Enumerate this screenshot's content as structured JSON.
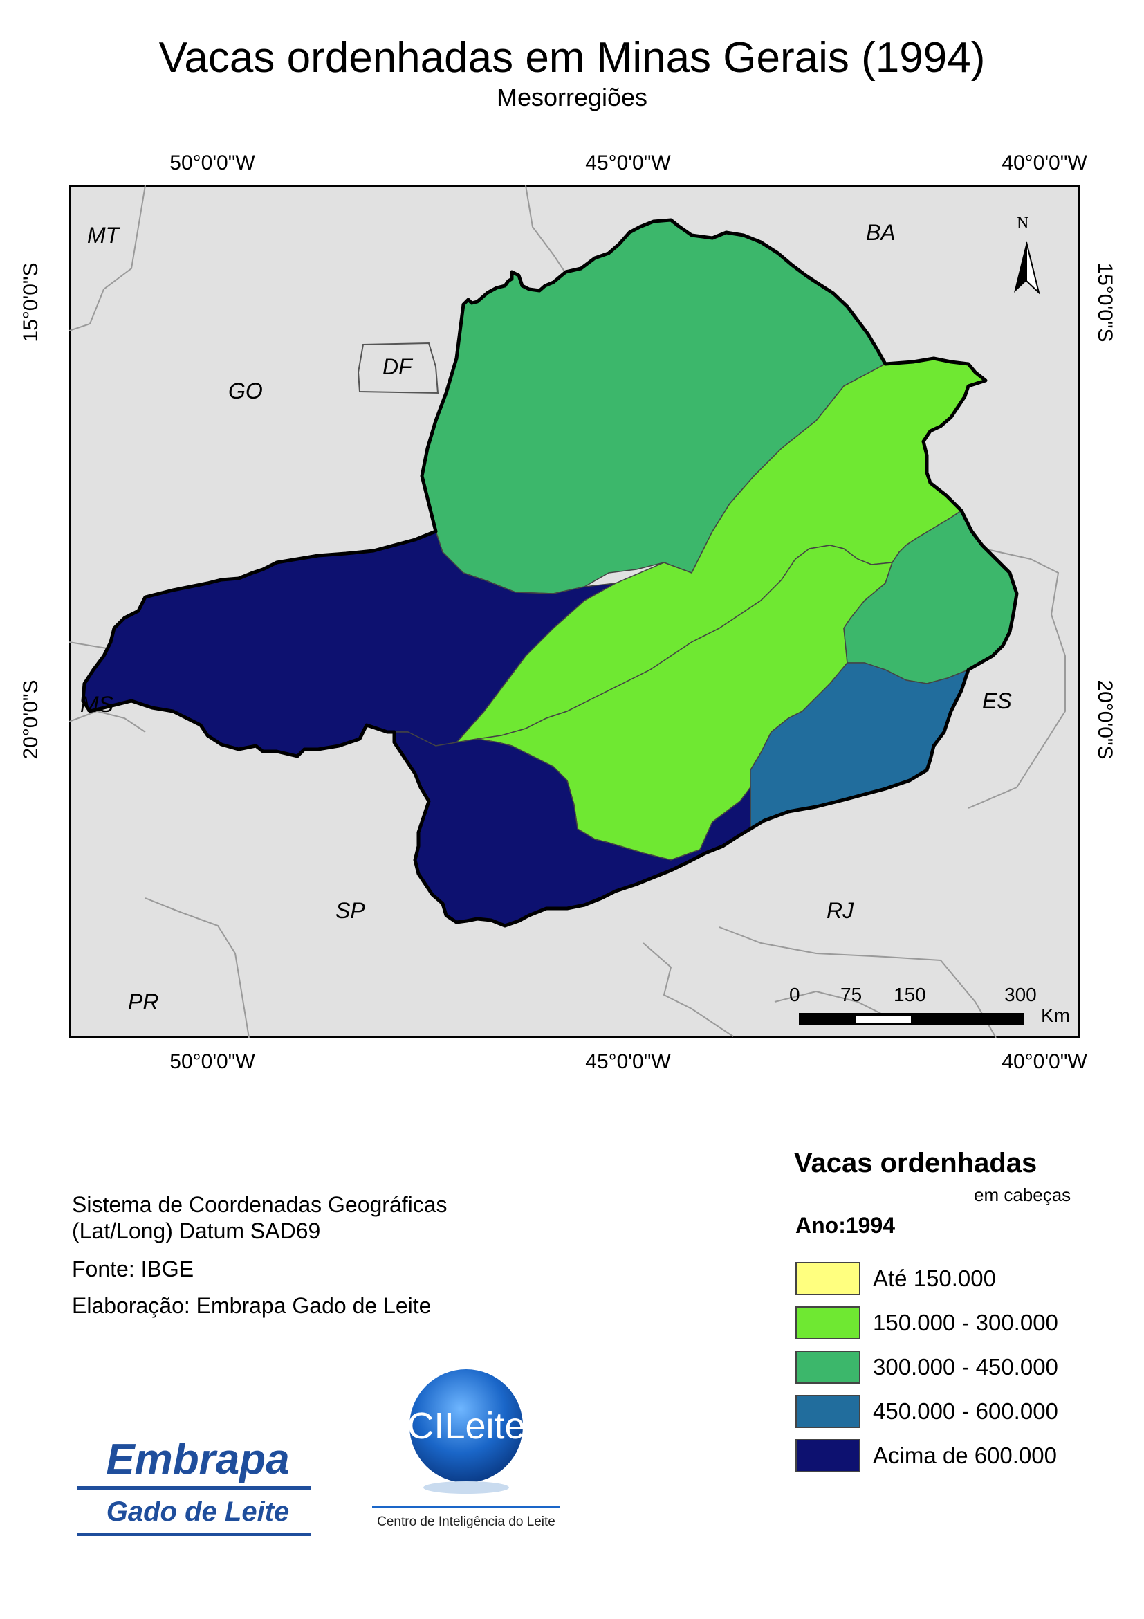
{
  "header": {
    "title": "Vacas ordenhadas em Minas Gerais (1994)",
    "subtitle": "Mesorregiões"
  },
  "grid": {
    "longitudes": [
      "50°0'0\"W",
      "45°0'0\"W",
      "40°0'0\"W"
    ],
    "latitudes": [
      "15°0'0\"S",
      "20°0'0\"S"
    ]
  },
  "states": {
    "mt": "MT",
    "go": "GO",
    "df": "DF",
    "ba": "BA",
    "ms": "MS",
    "es": "ES",
    "sp": "SP",
    "rj": "RJ",
    "pr": "PR"
  },
  "north_arrow": {
    "label": "N"
  },
  "scale_bar": {
    "ticks": [
      "0",
      "75",
      "150",
      "300"
    ],
    "unit": "Km"
  },
  "info": {
    "coord_system_1": "Sistema de Coordenadas Geográficas",
    "coord_system_2": "(Lat/Long) Datum SAD69",
    "source": "Fonte: IBGE",
    "elaboration": "Elaboração: Embrapa Gado de Leite"
  },
  "legend": {
    "title": "Vacas ordenhadas",
    "unit": "em cabeças",
    "year": "Ano:1994",
    "items": [
      {
        "label": "Até 150.000",
        "color": "#ffff7f"
      },
      {
        "label": "150.000 - 300.000",
        "color": "#6fe832"
      },
      {
        "label": "300.000 - 450.000",
        "color": "#3cb76b"
      },
      {
        "label": "450.000 - 600.000",
        "color": "#216d9d"
      },
      {
        "label": "Acima de 600.000",
        "color": "#0d1170"
      }
    ]
  },
  "logos": {
    "embrapa_name": "Embrapa",
    "embrapa_unit": "Gado de Leite",
    "cileite_name": "CILeite",
    "cileite_caption": "Centro de Inteligência do Leite"
  },
  "colors": {
    "background_land": "#e1e1e1",
    "boundary": "#000000",
    "state_line": "#9a9a9a"
  }
}
